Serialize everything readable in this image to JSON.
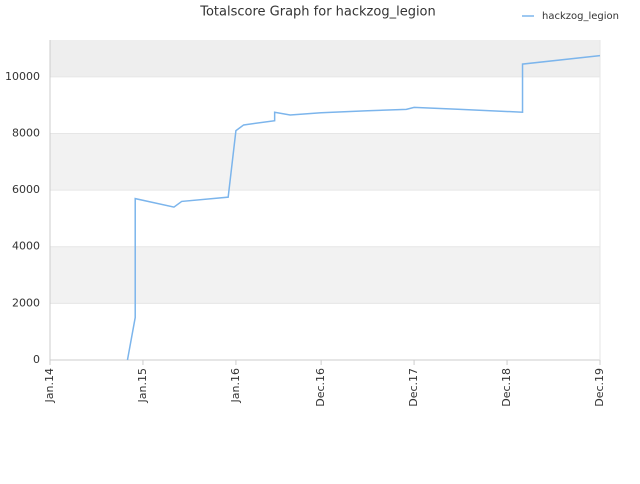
{
  "chart_data": {
    "type": "line",
    "title": "Totalscore Graph for hackzog_legion",
    "x": [
      "2014-11",
      "2014-12",
      "2014-12",
      "2015-05",
      "2015-06",
      "2015-12",
      "2016-01",
      "2016-02",
      "2016-06",
      "2016-06",
      "2016-08",
      "2016-12",
      "2017-06",
      "2017-11",
      "2017-12",
      "2018-06",
      "2019-02",
      "2019-02",
      "2019-12"
    ],
    "series": [
      {
        "name": "hackzog_legion",
        "color": "#7cb5ec",
        "values": [
          0,
          1500,
          5700,
          5400,
          5600,
          5750,
          8100,
          8300,
          8450,
          8750,
          8650,
          8730,
          8800,
          8850,
          8920,
          8850,
          8750,
          10450,
          10750
        ]
      }
    ],
    "xlim": [
      "2014-01",
      "2019-12"
    ],
    "xticks": [
      {
        "value": "2014-01",
        "label": "Jan.14"
      },
      {
        "value": "2015-01",
        "label": "Jan.15"
      },
      {
        "value": "2016-01",
        "label": "Jan.16"
      },
      {
        "value": "2016-12",
        "label": "Dec.16"
      },
      {
        "value": "2017-12",
        "label": "Dec.17"
      },
      {
        "value": "2018-12",
        "label": "Dec.18"
      },
      {
        "value": "2019-12",
        "label": "Dec.19"
      }
    ],
    "ylim": [
      0,
      11300
    ],
    "yticks": [
      0,
      2000,
      4000,
      6000,
      8000,
      10000
    ],
    "grid": true,
    "legend": "top-right"
  }
}
